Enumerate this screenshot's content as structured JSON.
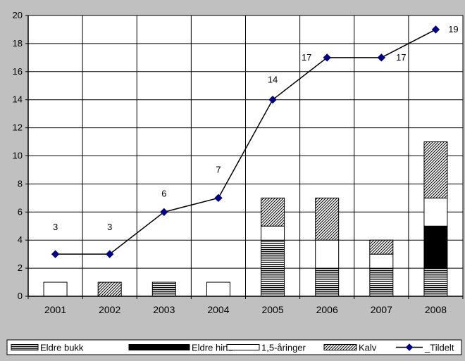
{
  "chart_data": {
    "type": "bar",
    "categories": [
      "2001",
      "2002",
      "2003",
      "2004",
      "2005",
      "2006",
      "2007",
      "2008"
    ],
    "series": [
      {
        "name": "Eldre bukk",
        "kind": "bar",
        "pattern": "horizontal-lines",
        "values": [
          0,
          0,
          1,
          0,
          4,
          2,
          2,
          2
        ]
      },
      {
        "name": "Eldre hind",
        "kind": "bar",
        "pattern": "solid-black",
        "values": [
          0,
          0,
          0,
          0,
          0,
          0,
          0,
          3
        ]
      },
      {
        "name": "1,5-åringer",
        "kind": "bar",
        "pattern": "solid-white",
        "values": [
          1,
          0,
          0,
          1,
          1,
          2,
          1,
          2
        ]
      },
      {
        "name": "Kalv",
        "kind": "bar",
        "pattern": "diagonal-hatch",
        "values": [
          0,
          1,
          0,
          0,
          2,
          3,
          1,
          4
        ]
      },
      {
        "name": "_Tildelt",
        "kind": "line",
        "marker": "diamond",
        "color": "#000080",
        "values": [
          3,
          3,
          6,
          7,
          14,
          17,
          17,
          19
        ],
        "data_labels": [
          "3",
          "3",
          "6",
          "7",
          "14",
          "17",
          "17",
          "19"
        ]
      }
    ],
    "y_ticks": [
      "0",
      "2",
      "4",
      "6",
      "8",
      "10",
      "12",
      "14",
      "16",
      "18",
      "20"
    ],
    "ylim": [
      0,
      20
    ],
    "grid": true,
    "legend_position": "bottom",
    "title": "",
    "xlabel": "",
    "ylabel": ""
  }
}
